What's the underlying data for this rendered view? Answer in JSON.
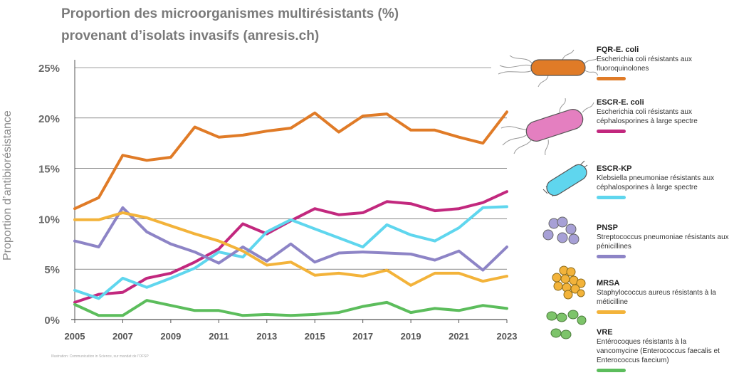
{
  "title_line1": "Proportion des microorganismes multirésistants (%)",
  "title_line2": "provenant d’isolats invasifs (anresis.ch)",
  "credit": "Illustration: Communication in Science, sur mandat de l’OFSP",
  "chart_data": {
    "type": "line",
    "ylabel": "Proportion d’antibiorésistance",
    "ylim": [
      0,
      25
    ],
    "yticks": [
      "0%",
      "5%",
      "10%",
      "15%",
      "20%",
      "25%"
    ],
    "xlim": [
      2005,
      2023
    ],
    "xticks": [
      "2005",
      "2007",
      "2009",
      "2011",
      "2013",
      "2015",
      "2017",
      "2019",
      "2021",
      "2023"
    ],
    "x": [
      2005,
      2006,
      2007,
      2008,
      2009,
      2010,
      2011,
      2012,
      2013,
      2014,
      2015,
      2016,
      2017,
      2018,
      2019,
      2020,
      2021,
      2022,
      2023
    ],
    "series": [
      {
        "name": "FQR-E. coli",
        "color": "#e07b27",
        "values": [
          11.0,
          12.1,
          16.3,
          15.8,
          16.1,
          19.1,
          18.1,
          18.3,
          18.7,
          19.0,
          20.5,
          18.6,
          20.2,
          20.4,
          18.8,
          18.8,
          18.1,
          17.5,
          20.6
        ]
      },
      {
        "name": "ESCR-E. coli",
        "color": "#c2287e",
        "values": [
          1.7,
          2.5,
          2.7,
          4.1,
          4.6,
          5.7,
          7.0,
          9.5,
          8.5,
          9.8,
          11.0,
          10.4,
          10.6,
          11.7,
          11.5,
          10.8,
          11.0,
          11.6,
          12.7
        ]
      },
      {
        "name": "ESCR-KP",
        "color": "#5fd6ee",
        "values": [
          2.9,
          2.1,
          4.1,
          3.2,
          4.1,
          5.1,
          6.7,
          6.2,
          8.7,
          9.9,
          9.0,
          8.1,
          7.2,
          9.4,
          8.4,
          7.8,
          9.1,
          11.1,
          11.2
        ]
      },
      {
        "name": "PNSP",
        "color": "#8d84c6",
        "values": [
          7.8,
          7.2,
          11.1,
          8.7,
          7.5,
          6.7,
          5.6,
          7.2,
          5.8,
          7.5,
          5.7,
          6.6,
          6.7,
          6.6,
          6.5,
          5.9,
          6.8,
          4.9,
          7.2
        ]
      },
      {
        "name": "MRSA",
        "color": "#f3b33a",
        "values": [
          9.9,
          9.9,
          10.6,
          10.1,
          9.3,
          8.5,
          7.8,
          6.8,
          5.4,
          5.7,
          4.4,
          4.6,
          4.3,
          4.9,
          3.4,
          4.6,
          4.6,
          3.8,
          4.3
        ]
      },
      {
        "name": "VRE",
        "color": "#5cbd5c",
        "values": [
          1.5,
          0.4,
          0.4,
          1.9,
          1.4,
          0.9,
          0.9,
          0.4,
          0.5,
          0.4,
          0.5,
          0.7,
          1.3,
          1.7,
          0.7,
          1.1,
          0.9,
          1.4,
          1.1
        ]
      }
    ]
  },
  "legend": [
    {
      "code": "FQR-E. coli",
      "desc": "Escherichia coli résistants aux fluoroquinolones",
      "color": "#e07b27"
    },
    {
      "code": "ESCR-E. coli",
      "desc": "Escherichia coli résistants aux céphalosporines à large spectre",
      "color": "#c2287e"
    },
    {
      "code": "ESCR-KP",
      "desc": "Klebsiella pneumoniae résistants aux céphalosporines à large spectre",
      "color": "#5fd6ee"
    },
    {
      "code": "PNSP",
      "desc": "Streptococcus pneumoniae résistants aux pénicillines",
      "color": "#8d84c6"
    },
    {
      "code": "MRSA",
      "desc": "Staphylococcus aureus résistants à la méticilline",
      "color": "#f3b33a"
    },
    {
      "code": "VRE",
      "desc": "Entérocoques résistants à la vancomycine (Enterococcus faecalis et Enterococcus faecium)",
      "color": "#5cbd5c"
    }
  ]
}
